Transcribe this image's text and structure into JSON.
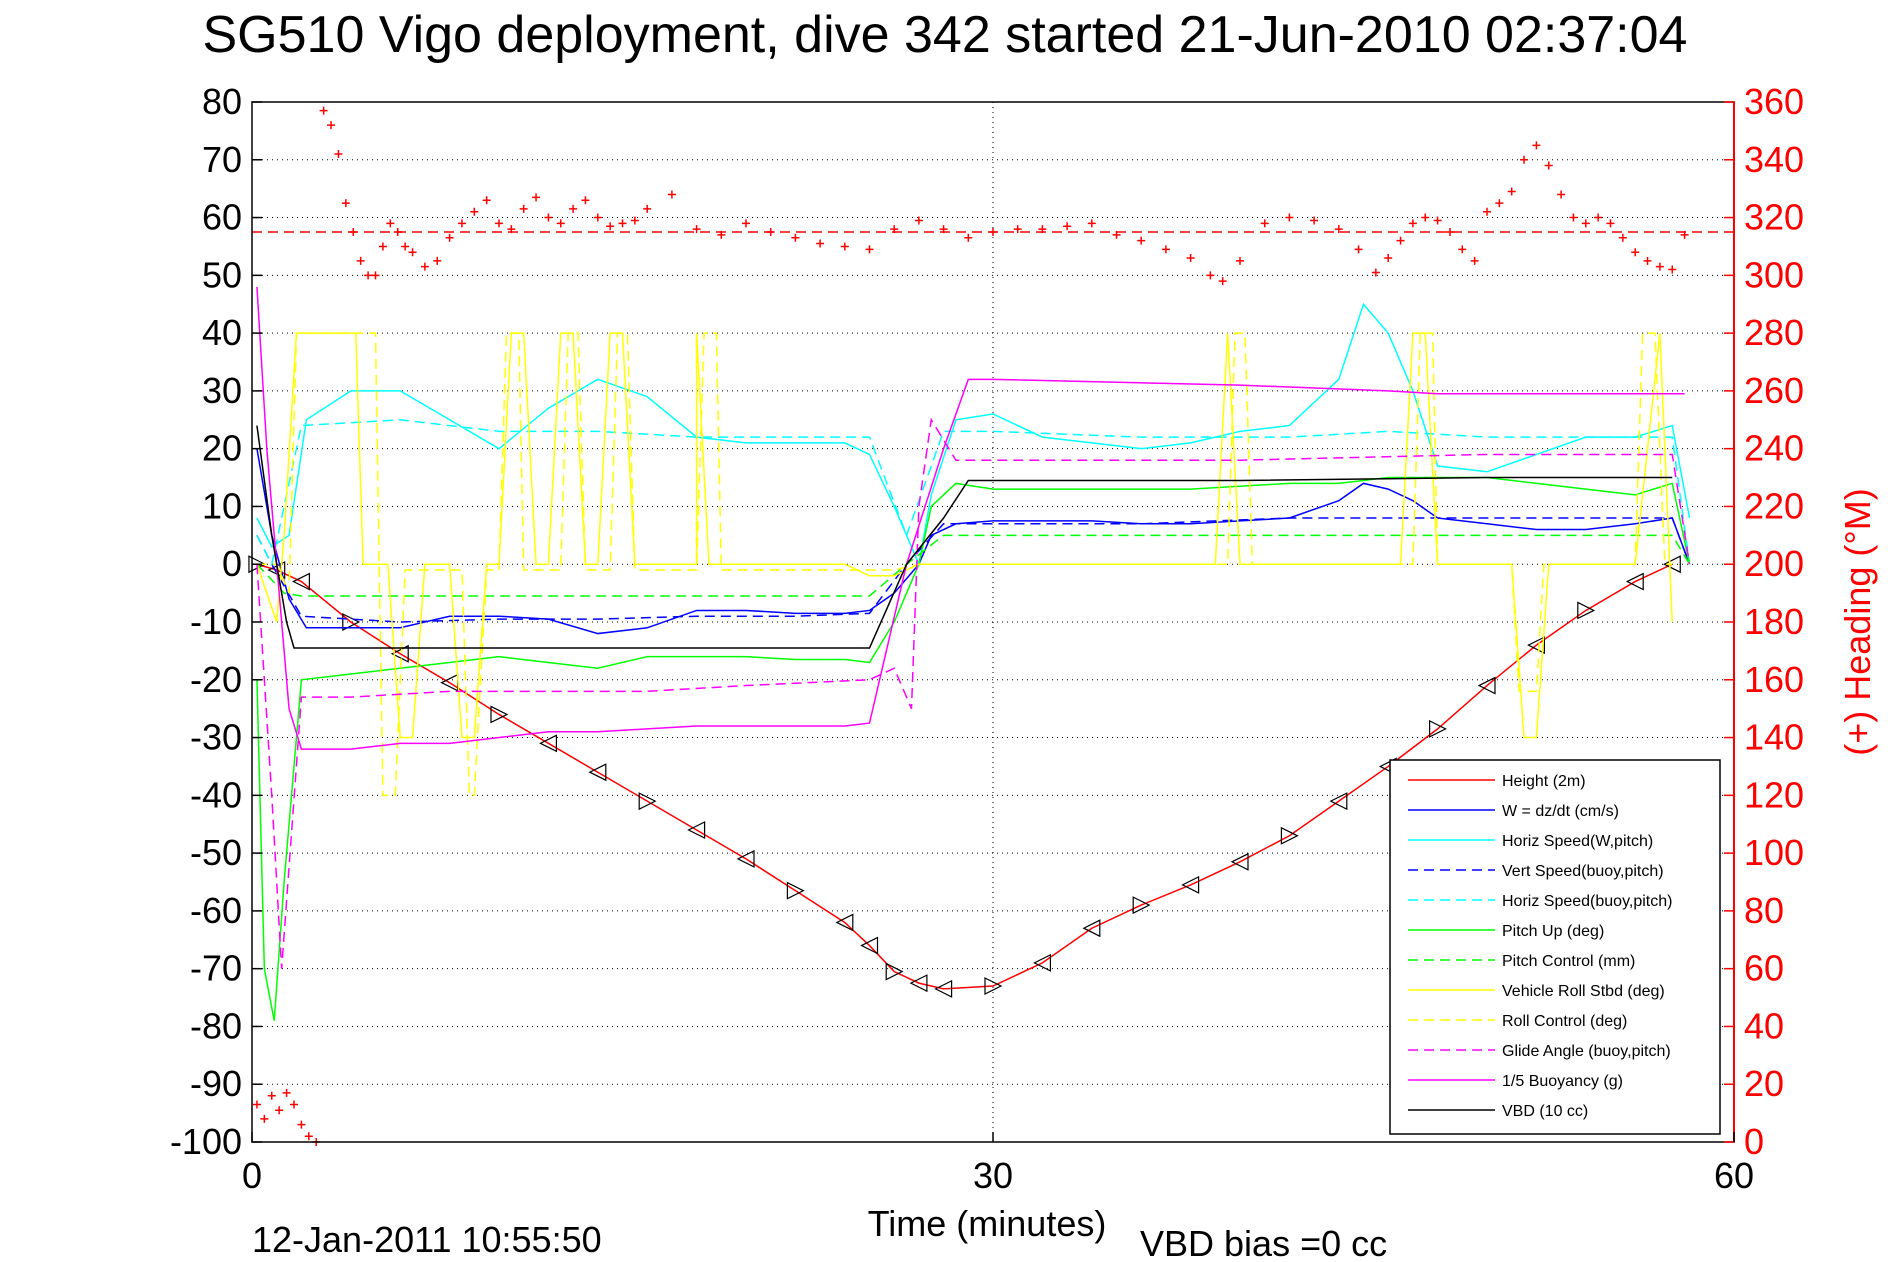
{
  "chart_data": {
    "type": "line",
    "title": "SG510 Vigo deployment, dive 342 started 21-Jun-2010 02:37:04",
    "xlabel": "Time (minutes)",
    "ylabel": "",
    "y2label": "(+) Heading (°M)",
    "xlim": [
      0,
      60
    ],
    "ylim": [
      -100,
      80
    ],
    "y2lim": [
      0,
      360
    ],
    "x_ticks": [
      "0",
      "30",
      "60"
    ],
    "y_ticks": [
      "80",
      "70",
      "60",
      "50",
      "40",
      "30",
      "20",
      "10",
      "0",
      "-10",
      "-20",
      "-30",
      "-40",
      "-50",
      "-60",
      "-70",
      "-80",
      "-90",
      "-100"
    ],
    "y2_ticks": [
      "360",
      "340",
      "320",
      "300",
      "280",
      "260",
      "240",
      "220",
      "200",
      "180",
      "160",
      "140",
      "120",
      "100",
      "80",
      "60",
      "40",
      "20",
      "0"
    ],
    "grid": true,
    "legend_position": "bottom-right",
    "footer_date": "12-Jan-2011 10:55:50",
    "vbd_bias": "VBD bias =0 cc",
    "series": [
      {
        "name": "Height (2m)",
        "color": "#ff0000",
        "dash": "solid",
        "marker": "triangle",
        "x": [
          0.2,
          1,
          2,
          4,
          6,
          8,
          10,
          12,
          14,
          16,
          18,
          20,
          22,
          24,
          25,
          26,
          27,
          28,
          30,
          32,
          34,
          36,
          38,
          40,
          42,
          44,
          46,
          48,
          50,
          52,
          54,
          56,
          57.5
        ],
        "y": [
          0,
          -1,
          -3,
          -10,
          -15.5,
          -20.5,
          -26,
          -31,
          -36,
          -41,
          -46,
          -51,
          -56.5,
          -62,
          -66,
          -70.5,
          -72.5,
          -73.5,
          -73,
          -69,
          -63,
          -59,
          -55.5,
          -51.5,
          -47,
          -41,
          -35,
          -28.5,
          -21,
          -14,
          -8,
          -3,
          0
        ]
      },
      {
        "name": "W = dz/dt (cm/s)",
        "color": "#0000ff",
        "dash": "solid",
        "x": [
          0.2,
          0.8,
          1.5,
          2.2,
          4,
          6,
          8,
          10,
          12,
          14,
          16,
          18,
          20,
          22,
          24,
          25,
          26,
          27,
          27.5,
          28.5,
          30,
          32,
          34,
          36,
          38,
          40,
          42,
          44,
          45,
          46,
          47,
          48,
          50,
          52,
          54,
          56,
          57.5,
          58.2
        ],
        "y": [
          20,
          5,
          -6,
          -11,
          -11,
          -11,
          -9,
          -9,
          -9.5,
          -12,
          -11,
          -8,
          -8,
          -8.5,
          -8.5,
          -8,
          -5,
          0,
          5,
          7,
          7.5,
          7.5,
          7.5,
          7,
          7,
          7.5,
          8,
          11,
          14,
          13,
          11,
          8,
          7,
          6,
          6,
          7,
          8,
          0
        ]
      },
      {
        "name": "Horiz Speed(W,pitch)",
        "color": "#00ffff",
        "dash": "solid",
        "x": [
          0.2,
          0.8,
          1.5,
          2.2,
          4,
          6,
          8,
          10,
          12,
          14,
          16,
          18,
          20,
          22,
          24,
          25,
          26,
          27,
          27.5,
          28.5,
          30,
          32,
          34,
          36,
          38,
          40,
          42,
          44,
          45,
          46,
          47,
          48,
          50,
          52,
          54,
          56,
          57.5,
          58.2
        ],
        "y": [
          8,
          3,
          5,
          25,
          30,
          30,
          25,
          20,
          27,
          32,
          29,
          22,
          21,
          21,
          21,
          19,
          10,
          0,
          12,
          25,
          26,
          22,
          21,
          20,
          21,
          23,
          24,
          32,
          45,
          40,
          30,
          17,
          16,
          19,
          22,
          22,
          24,
          8
        ]
      },
      {
        "name": "Vert Speed(buoy,pitch)",
        "color": "#0000ff",
        "dash": "dashed",
        "x": [
          0.2,
          0.8,
          2,
          6,
          10,
          14,
          18,
          22,
          25,
          26.5,
          28,
          30,
          36,
          42,
          44,
          46,
          47.5,
          50,
          54,
          57.5,
          58.2
        ],
        "y": [
          5,
          0,
          -9,
          -10,
          -9.5,
          -9.5,
          -9,
          -9,
          -8.5,
          0,
          7,
          7,
          7,
          8,
          8,
          8,
          8,
          8,
          8,
          8,
          0
        ]
      },
      {
        "name": "Horiz Speed(buoy,pitch)",
        "color": "#00ffff",
        "dash": "dashed",
        "x": [
          0.2,
          0.8,
          2,
          6,
          10,
          14,
          18,
          22,
          25,
          26.5,
          28,
          30,
          36,
          42,
          46,
          50,
          54,
          57.5,
          58.2
        ],
        "y": [
          5,
          0,
          24,
          25,
          23,
          23,
          22,
          22,
          22,
          5,
          23,
          23,
          22,
          22,
          23,
          22,
          22,
          22,
          0
        ]
      },
      {
        "name": "Pitch Up (deg)",
        "color": "#00ff00",
        "dash": "solid",
        "x": [
          0.2,
          0.5,
          0.9,
          1.3,
          2,
          4,
          6,
          8,
          10,
          12,
          14,
          16,
          18,
          20,
          22,
          24,
          25,
          26,
          27,
          27.5,
          28.5,
          30,
          34,
          38,
          42,
          44,
          46,
          48,
          50,
          54,
          56,
          57.5,
          58.2
        ],
        "y": [
          -20,
          -70,
          -79,
          -55,
          -20,
          -19,
          -18,
          -17,
          -16,
          -17,
          -18,
          -16,
          -16,
          -16,
          -16.5,
          -16.5,
          -17,
          -10,
          0,
          10,
          14,
          13,
          13,
          13,
          14,
          14,
          15,
          15,
          15,
          13,
          12,
          14,
          0
        ]
      },
      {
        "name": "Pitch Control (mm)",
        "color": "#00ff00",
        "dash": "dashed",
        "x": [
          0.2,
          1.3,
          2,
          10,
          20,
          25,
          26.5,
          28,
          30,
          40,
          50,
          57.5,
          58.2
        ],
        "y": [
          0,
          -5,
          -5.5,
          -5.5,
          -5.5,
          -5.5,
          0,
          5,
          5,
          5,
          5,
          5,
          0
        ]
      },
      {
        "name": "Vehicle Roll Stbd (deg)",
        "color": "#ffff00",
        "dash": "solid",
        "x": [
          0.2,
          1,
          1.3,
          1.8,
          2.3,
          3,
          4.2,
          4.5,
          5.5,
          6,
          6.5,
          7,
          8,
          8.5,
          9,
          9.5,
          10,
          10.5,
          10.5,
          11,
          11.5,
          12,
          12.5,
          13,
          13.5,
          14,
          14.5,
          15,
          15.5,
          16,
          16.5,
          17,
          18,
          18,
          18.5,
          20,
          22,
          24,
          25,
          26,
          27,
          28,
          30,
          35,
          39,
          39.5,
          40,
          45,
          46.5,
          47,
          47.5,
          48,
          49,
          51,
          51.5,
          52,
          52.5,
          53,
          55,
          56,
          57,
          57.5
        ],
        "y": [
          0,
          -10,
          5,
          40,
          40,
          40,
          40,
          0,
          0,
          -30,
          -30,
          0,
          0,
          -30,
          -30,
          0,
          0,
          40,
          40,
          40,
          0,
          0,
          40,
          40,
          0,
          0,
          40,
          40,
          0,
          0,
          0,
          0,
          0,
          40,
          0,
          0,
          0,
          0,
          -2,
          -2,
          0,
          0,
          0,
          0,
          0,
          40,
          0,
          0,
          0,
          40,
          40,
          0,
          0,
          0,
          -30,
          -30,
          0,
          0,
          0,
          0,
          40,
          -10
        ]
      },
      {
        "name": "Roll Control (deg)",
        "color": "#ffff00",
        "dash": "dashed",
        "x": [
          0.2,
          1,
          1.5,
          1.8,
          2.4,
          5,
          5.3,
          5.8,
          6.2,
          8.5,
          8.8,
          9,
          9.5,
          10,
          10.3,
          10.8,
          11,
          12.5,
          12.8,
          13.2,
          13.5,
          14.5,
          14.8,
          15.2,
          15.5,
          18,
          18.3,
          18.8,
          19,
          25,
          26,
          27,
          30,
          39.5,
          39.8,
          40.2,
          40.5,
          47,
          47.3,
          47.8,
          48,
          51,
          51.3,
          52,
          52.3,
          56,
          56.3,
          56.8,
          57.2,
          57.5
        ],
        "y": [
          0,
          0,
          -5,
          40,
          40,
          40,
          -40,
          -40,
          -1,
          -1,
          -40,
          -40,
          -1,
          -1,
          40,
          40,
          -1,
          -1,
          40,
          40,
          -1,
          -1,
          40,
          40,
          -1,
          -1,
          40,
          40,
          -1,
          -1,
          -1,
          0,
          0,
          0,
          40,
          40,
          0,
          0,
          40,
          40,
          0,
          0,
          -22,
          -22,
          0,
          0,
          40,
          40,
          0,
          0
        ]
      },
      {
        "name": "Glide Angle (buoy,pitch)",
        "color": "#ff00ff",
        "dash": "dashed",
        "x": [
          0.2,
          0.8,
          1.2,
          2,
          4,
          8,
          12,
          16,
          20,
          25,
          26,
          26.7,
          27,
          27.5,
          28.5,
          30,
          40,
          50,
          57.5,
          58.2
        ],
        "y": [
          0,
          -40,
          -70,
          -23,
          -23,
          -22,
          -22,
          -22,
          -21,
          -20,
          -18,
          -25,
          10,
          25,
          18,
          18,
          18,
          19,
          19,
          0
        ]
      },
      {
        "name": "1/5 Buoyancy (g)",
        "color": "#ff00ff",
        "dash": "solid",
        "x": [
          0.2,
          0.6,
          1,
          1.5,
          2,
          4,
          6,
          8,
          10,
          12,
          14,
          16,
          18,
          20,
          22,
          24,
          25,
          26.5,
          28,
          29,
          30,
          40,
          46,
          48,
          50,
          54,
          57.5,
          58
        ],
        "y": [
          48,
          20,
          0,
          -25,
          -32,
          -32,
          -31,
          -31,
          -30,
          -29,
          -29,
          -28.5,
          -28,
          -28,
          -28,
          -28,
          -27.5,
          0,
          20,
          32,
          32,
          31,
          30,
          29.5,
          29.5,
          29.5,
          29.5,
          29.5
        ]
      },
      {
        "name": "VBD (10 cc)",
        "color": "#000000",
        "dash": "solid",
        "x": [
          0.2,
          0.8,
          1.4,
          1.7,
          25,
          26.5,
          28,
          29,
          40,
          50,
          57.5
        ],
        "y": [
          24,
          5,
          -10,
          -14.5,
          -14.5,
          0,
          8,
          14.5,
          14.5,
          15,
          15
        ]
      }
    ],
    "heading_mean": 315,
    "heading_mean_color": "#ff0000",
    "heading": {
      "name": "(+) Heading",
      "color": "#ff0000",
      "x": [
        0.2,
        0.5,
        0.8,
        1.1,
        1.4,
        1.7,
        2.0,
        2.3,
        2.6,
        2.9,
        3.2,
        3.5,
        3.8,
        4.1,
        4.4,
        4.7,
        5.0,
        5.3,
        5.6,
        5.9,
        6.2,
        6.5,
        7.0,
        7.5,
        8.0,
        8.5,
        9.0,
        9.5,
        10.0,
        10.5,
        11.0,
        11.5,
        12.0,
        12.5,
        13.0,
        13.5,
        14.0,
        14.5,
        15.0,
        15.5,
        16.0,
        17.0,
        18.0,
        19.0,
        20.0,
        21.0,
        22.0,
        23.0,
        24.0,
        25.0,
        26.0,
        27.0,
        28.0,
        29.0,
        30.0,
        31.0,
        32.0,
        33.0,
        34.0,
        35.0,
        36.0,
        37.0,
        38.0,
        38.8,
        39.3,
        40.0,
        41.0,
        42.0,
        43.0,
        44.0,
        44.8,
        45.5,
        46.0,
        46.5,
        47.0,
        47.5,
        48.0,
        48.5,
        49.0,
        49.5,
        50.0,
        50.5,
        51.0,
        51.5,
        52.0,
        52.5,
        53.0,
        53.5,
        54.0,
        54.5,
        55.0,
        55.5,
        56.0,
        56.5,
        57.0,
        57.5,
        58.0
      ],
      "y": [
        13,
        8,
        16,
        11,
        17,
        13,
        6,
        2,
        0,
        357,
        352,
        342,
        325,
        315,
        305,
        300,
        300,
        310,
        318,
        315,
        310,
        308,
        303,
        305,
        313,
        318,
        322,
        326,
        318,
        316,
        323,
        327,
        320,
        318,
        323,
        326,
        320,
        317,
        318,
        319,
        323,
        328,
        316,
        314,
        318,
        315,
        313,
        311,
        310,
        309,
        316,
        319,
        316,
        313,
        315,
        316,
        316,
        317,
        318,
        314,
        312,
        309,
        306,
        300,
        298,
        305,
        318,
        320,
        319,
        316,
        309,
        301,
        306,
        312,
        318,
        320,
        319,
        315,
        309,
        305,
        322,
        325,
        329,
        340,
        345,
        338,
        328,
        320,
        318,
        320,
        318,
        313,
        308,
        305,
        303,
        302,
        314
      ]
    }
  }
}
